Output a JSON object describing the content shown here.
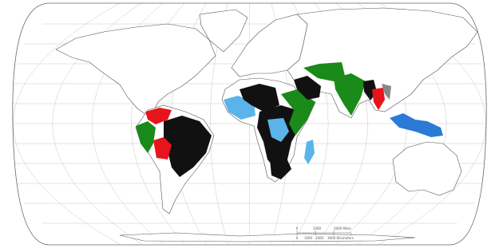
{
  "scale_bar": {
    "miles": [
      "0",
      "1000",
      "2000 Miles"
    ],
    "kilometers": [
      "0",
      "1000",
      "2000",
      "3000 Kilometers"
    ]
  }
}
